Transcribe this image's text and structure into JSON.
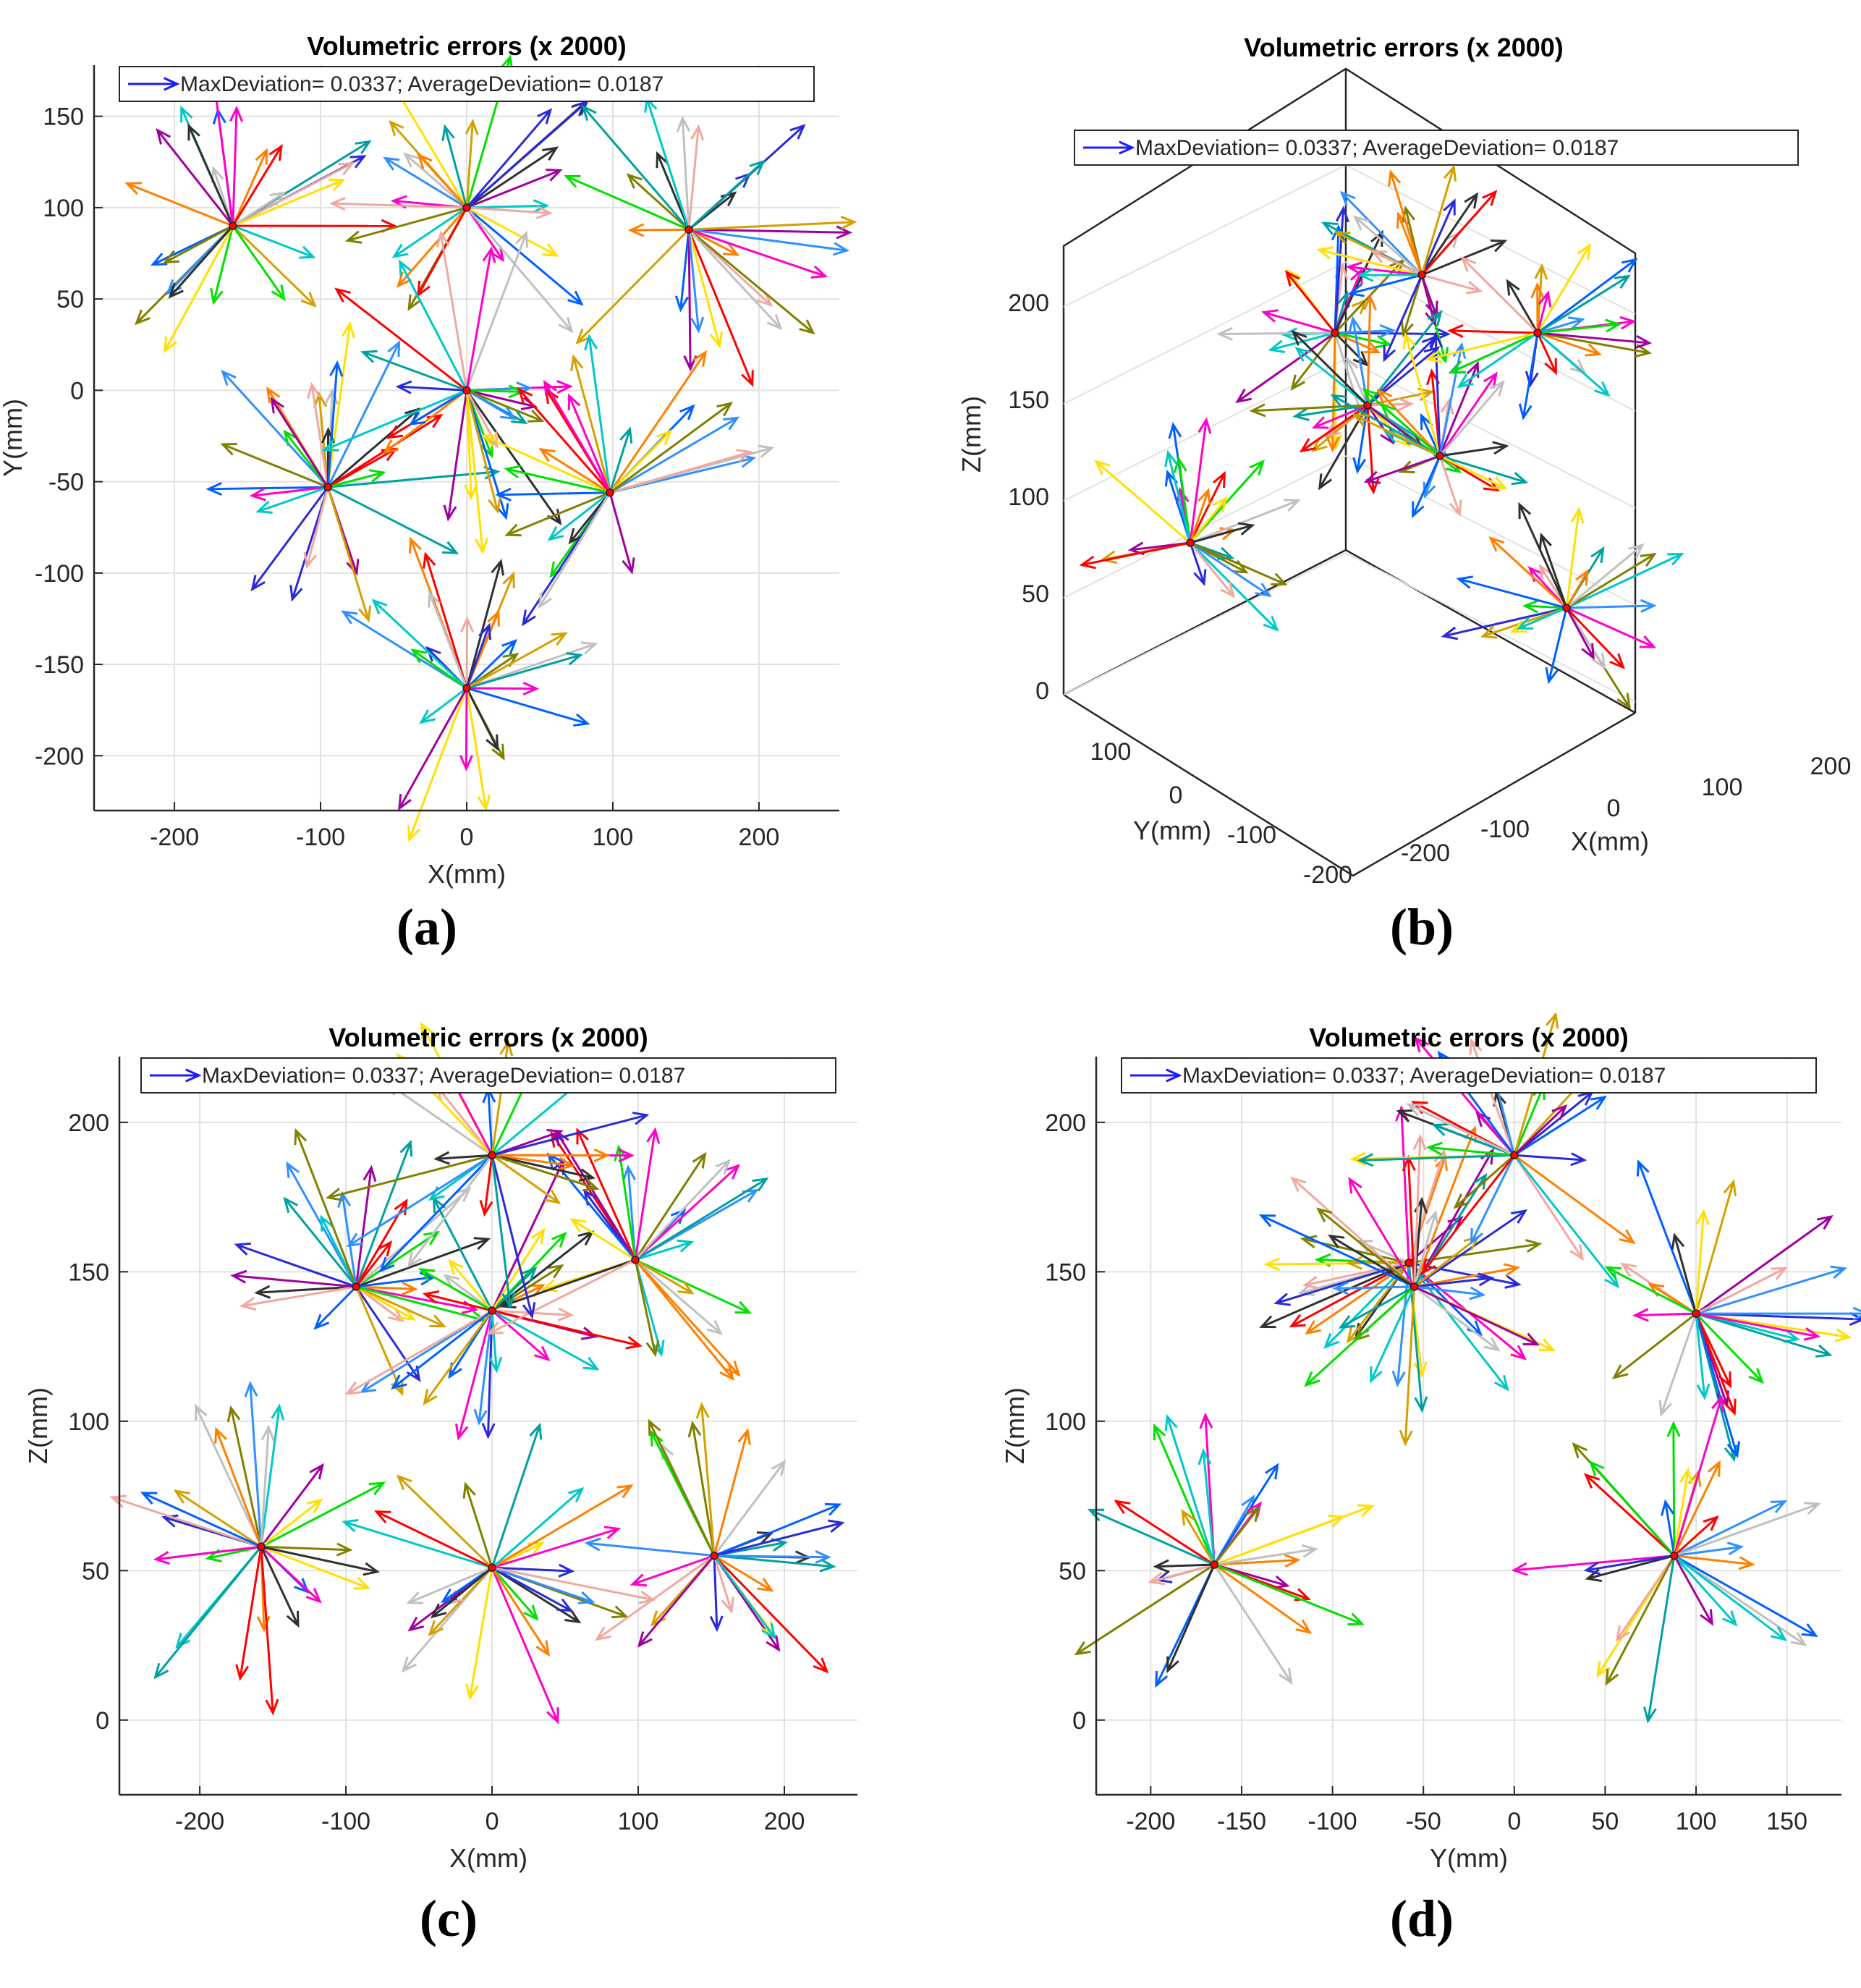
{
  "figure": {
    "panel_labels": [
      "(a)",
      "(b)",
      "(c)",
      "(d)"
    ],
    "colors": {
      "max_arrow": "#1a1aff",
      "grid": "#e1e1e1",
      "axis": "#262626",
      "palette": [
        "#ff0000",
        "#00e000",
        "#0060ff",
        "#ffe000",
        "#ff00c8",
        "#00c8c8",
        "#ff8000",
        "#808000",
        "#c0c0c0",
        "#303030",
        "#2a2ad8",
        "#d4a000",
        "#f0a8a0",
        "#a000a0",
        "#00a0a0",
        "#3090ff"
      ]
    }
  },
  "chart_data": [
    {
      "id": "a",
      "type": "quiver2d",
      "title": "Volumetric errors (x 2000)",
      "legend": {
        "label": "MaxDeviation=  0.0337; AverageDeviation=  0.0187",
        "location": "top"
      },
      "xlabel": "X(mm)",
      "ylabel": "Y(mm)",
      "xlim": [
        -255,
        255
      ],
      "ylim": [
        -230,
        178
      ],
      "xticks": [
        -200,
        -100,
        0,
        100,
        200
      ],
      "yticks": [
        -200,
        -150,
        -100,
        -50,
        0,
        50,
        100,
        150
      ],
      "grid": true,
      "scale": 2000,
      "max_deviation": 0.0337,
      "average_deviation": 0.0187,
      "centers": [
        [
          -160,
          90
        ],
        [
          0,
          100
        ],
        [
          152,
          88
        ],
        [
          -95,
          -53
        ],
        [
          0,
          0
        ],
        [
          98,
          -56
        ],
        [
          0,
          -163
        ]
      ]
    },
    {
      "id": "b",
      "type": "quiver3d",
      "title": "Volumetric errors (x 2000)",
      "legend": {
        "label": "MaxDeviation=  0.0337; AverageDeviation=  0.0187",
        "location": "top"
      },
      "xlabel": "X(mm)",
      "ylabel": "Y(mm)",
      "zlabel": "Z(mm)",
      "xticks": [
        -200,
        -100,
        0,
        100,
        200
      ],
      "yticks": [
        -200,
        -100,
        0,
        100
      ],
      "zticks": [
        0,
        50,
        100,
        150,
        200
      ],
      "grid": true,
      "scale": 2000,
      "max_deviation": 0.0337,
      "average_deviation": 0.0187
    },
    {
      "id": "c",
      "type": "quiver2d",
      "title": "Volumetric errors (x 2000)",
      "legend": {
        "label": "MaxDeviation=  0.0337; AverageDeviation=  0.0187",
        "location": "top"
      },
      "xlabel": "X(mm)",
      "ylabel": "Z(mm)",
      "xlim": [
        -255,
        250
      ],
      "ylim": [
        -25,
        222
      ],
      "xticks": [
        -200,
        -100,
        0,
        100,
        200
      ],
      "yticks": [
        0,
        50,
        100,
        150,
        200
      ],
      "grid": true,
      "scale": 2000,
      "max_deviation": 0.0337,
      "average_deviation": 0.0187,
      "centers": [
        [
          -158,
          58
        ],
        [
          0,
          51
        ],
        [
          152,
          55
        ],
        [
          -93,
          145
        ],
        [
          0,
          137
        ],
        [
          98,
          154
        ],
        [
          0,
          189
        ]
      ]
    },
    {
      "id": "d",
      "type": "quiver2d",
      "title": "Volumetric errors (x 2000)",
      "legend": {
        "label": "MaxDeviation=  0.0337; AverageDeviation=  0.0187",
        "location": "top"
      },
      "xlabel": "Y(mm)",
      "ylabel": "Z(mm)",
      "xlim": [
        -230,
        180
      ],
      "ylim": [
        -25,
        222
      ],
      "xticks": [
        -200,
        -150,
        -100,
        -50,
        0,
        50,
        100,
        150
      ],
      "yticks": [
        0,
        50,
        100,
        150,
        200
      ],
      "grid": true,
      "scale": 2000,
      "max_deviation": 0.0337,
      "average_deviation": 0.0187,
      "centers": [
        [
          -165,
          52
        ],
        [
          -58,
          153
        ],
        [
          -55,
          145
        ],
        [
          0,
          189
        ],
        [
          100,
          136
        ],
        [
          88,
          55
        ]
      ]
    }
  ]
}
